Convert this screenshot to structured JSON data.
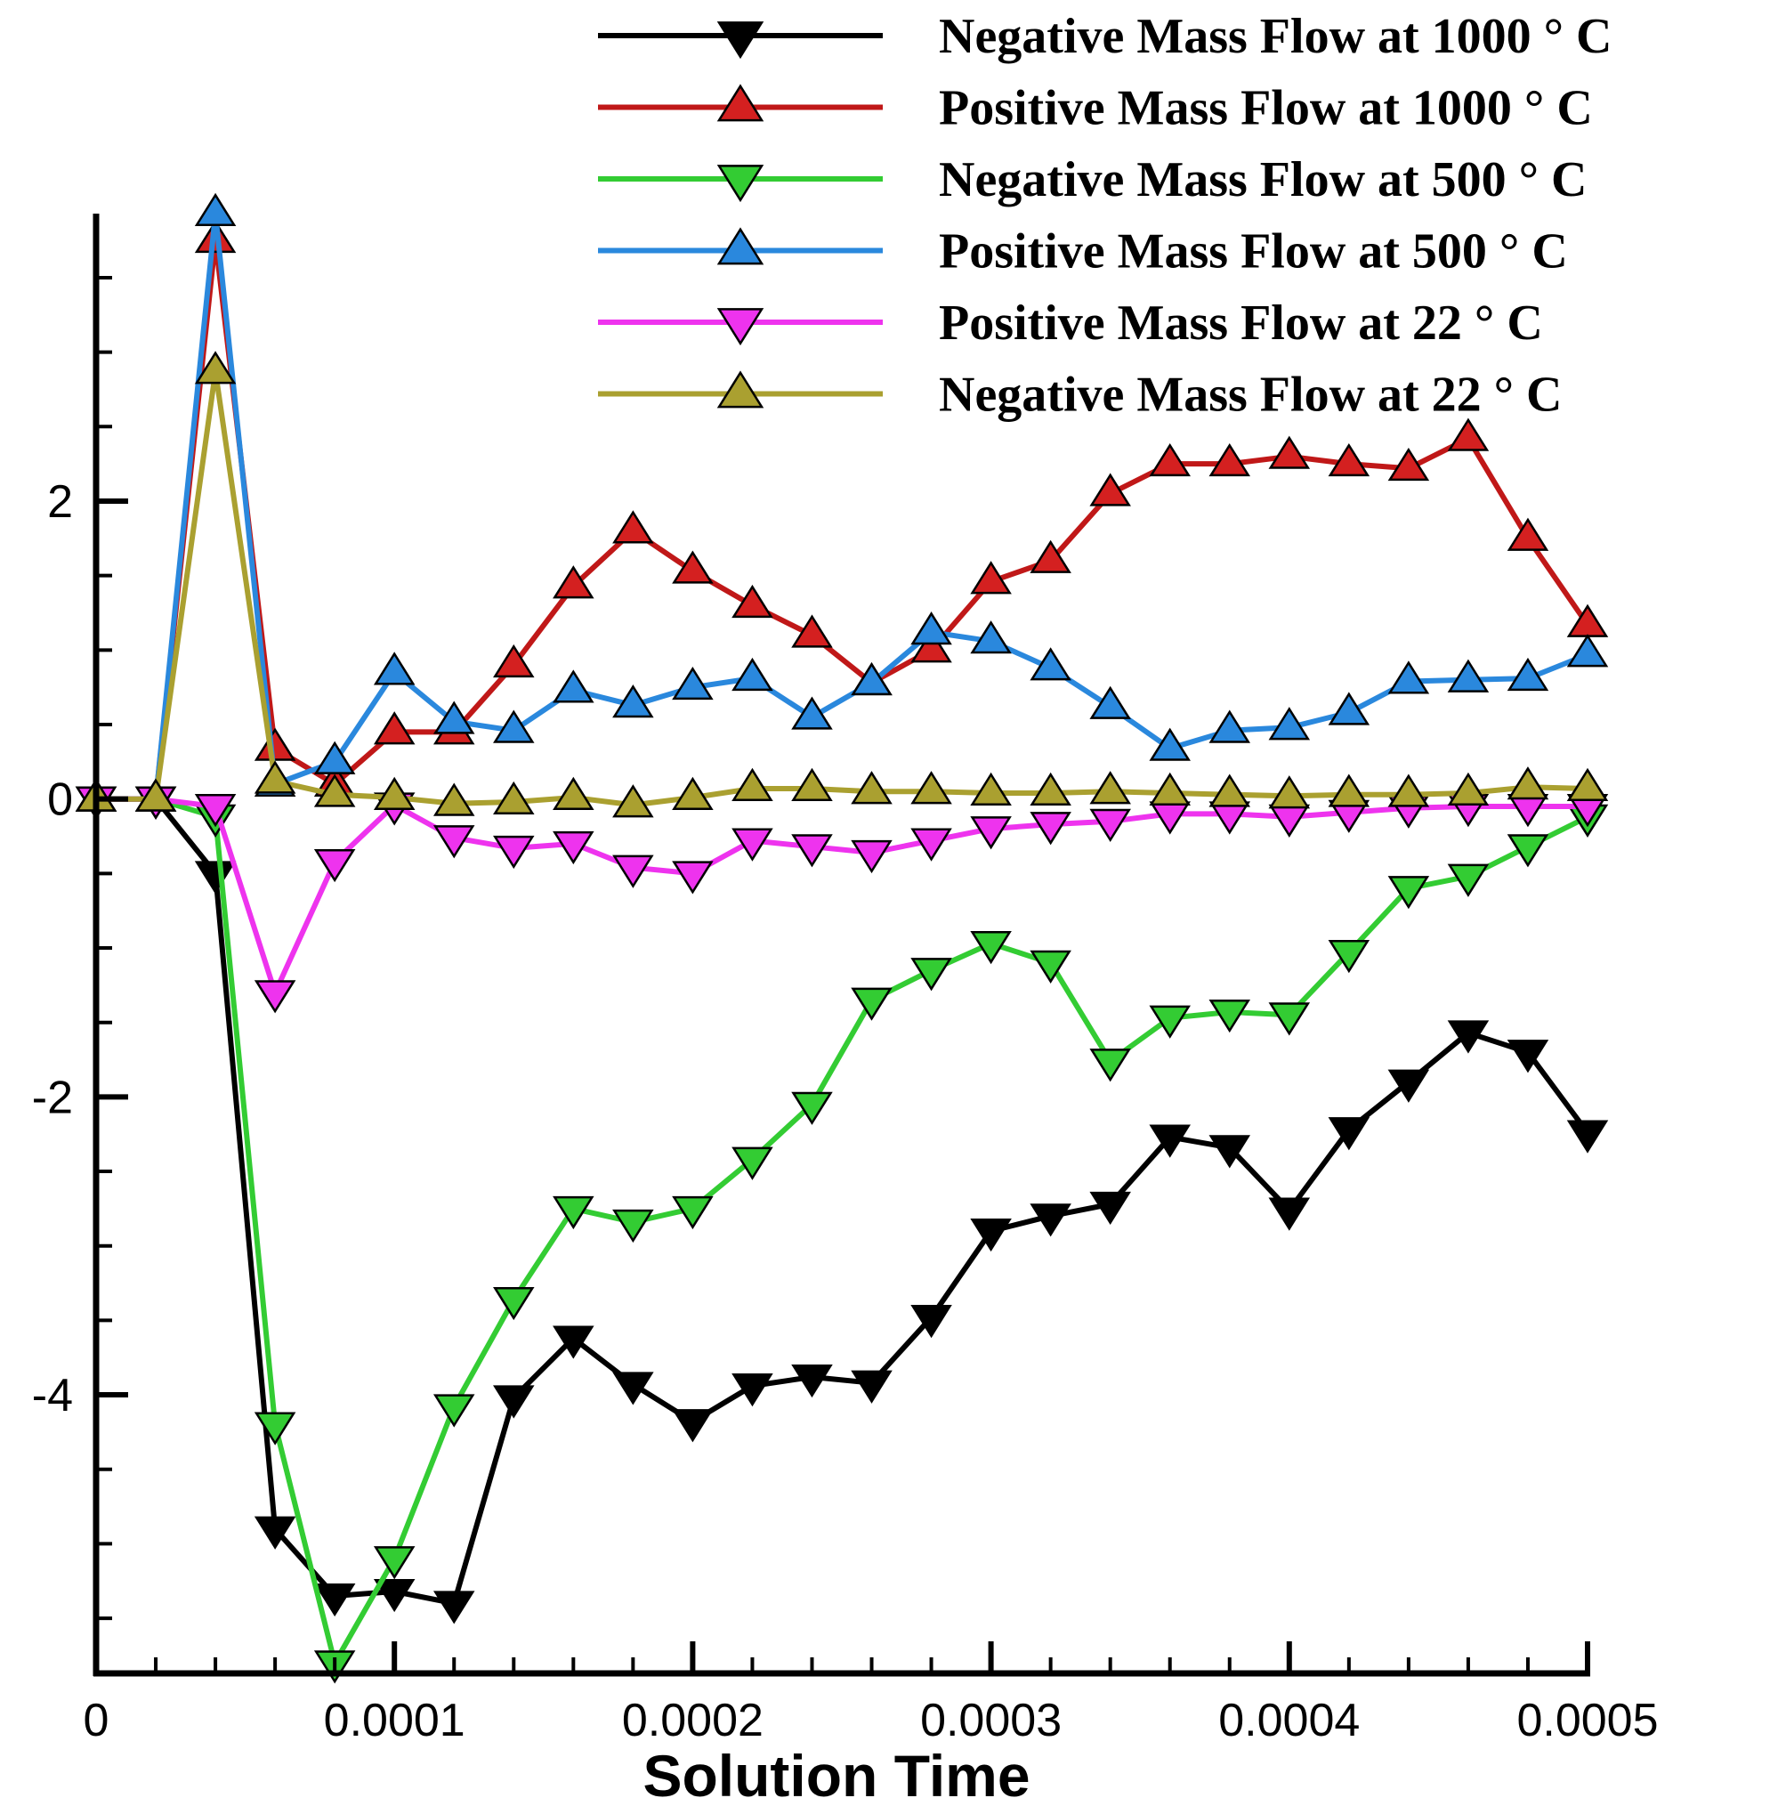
{
  "chart_data": {
    "type": "line",
    "title": "",
    "xlabel": "Solution Time",
    "ylabel": "",
    "xlim": [
      0,
      0.0005
    ],
    "ylim": [
      -5.87,
      3.93
    ],
    "x_ticks": [
      {
        "value": 0,
        "label": "0"
      },
      {
        "value": 0.0001,
        "label": "0.0001"
      },
      {
        "value": 0.0002,
        "label": "0.0002"
      },
      {
        "value": 0.0003,
        "label": "0.0003"
      },
      {
        "value": 0.0004,
        "label": "0.0004"
      },
      {
        "value": 0.0005,
        "label": "0.0005"
      }
    ],
    "y_ticks": [
      {
        "value": -4,
        "label": "-4"
      },
      {
        "value": -2,
        "label": "-2"
      },
      {
        "value": 0,
        "label": "0"
      },
      {
        "value": 2,
        "label": "2"
      }
    ],
    "x_minor_step": 2e-05,
    "y_minor_step": 0.5,
    "grid": false,
    "legend_position": "top-right",
    "x": [
      0,
      2e-05,
      4e-05,
      6e-05,
      8e-05,
      0.0001,
      0.00012,
      0.00014,
      0.00016,
      0.00018,
      0.0002,
      0.00022,
      0.00024,
      0.00026,
      0.00028,
      0.0003,
      0.00032,
      0.00034,
      0.00036,
      0.00038,
      0.0004,
      0.00042,
      0.00044,
      0.00046,
      0.00048,
      0.0005
    ],
    "series": [
      {
        "name": "Negative Mass Flow at 1000 ° C",
        "color": "#000000",
        "marker": "triangle-down",
        "marker_fill": "#000000",
        "values": [
          0,
          0,
          -0.5,
          -4.9,
          -5.35,
          -5.32,
          -5.4,
          -4.02,
          -3.62,
          -3.93,
          -4.18,
          -3.94,
          -3.88,
          -3.92,
          -3.48,
          -2.9,
          -2.8,
          -2.72,
          -2.27,
          -2.34,
          -2.76,
          -2.22,
          -1.9,
          -1.57,
          -1.7,
          -2.24
        ]
      },
      {
        "name": "Positive Mass Flow at 1000 ° C",
        "color": "#c01818",
        "marker": "triangle-up",
        "marker_fill": "#d42020",
        "values": [
          0,
          0,
          3.75,
          0.34,
          0.1,
          0.45,
          0.45,
          0.9,
          1.43,
          1.8,
          1.53,
          1.3,
          1.1,
          0.78,
          1.0,
          1.46,
          1.6,
          2.05,
          2.25,
          2.25,
          2.3,
          2.25,
          2.22,
          2.42,
          1.75,
          1.17
        ]
      },
      {
        "name": "Negative Mass Flow at 500 ° C",
        "color": "#33cc33",
        "marker": "triangle-down",
        "marker_fill": "#33cc33",
        "values": [
          0,
          0,
          -0.12,
          -4.2,
          -5.8,
          -5.1,
          -4.08,
          -3.36,
          -2.75,
          -2.84,
          -2.75,
          -2.42,
          -2.05,
          -1.35,
          -1.15,
          -0.97,
          -1.1,
          -1.76,
          -1.47,
          -1.43,
          -1.45,
          -1.03,
          -0.6,
          -0.52,
          -0.32,
          -0.12
        ]
      },
      {
        "name": "Positive Mass Flow at 500 ° C",
        "color": "#2a88dd",
        "marker": "triangle-up",
        "marker_fill": "#2a88dd",
        "values": [
          0,
          0,
          3.93,
          0.1,
          0.25,
          0.85,
          0.52,
          0.46,
          0.73,
          0.63,
          0.75,
          0.81,
          0.55,
          0.78,
          1.12,
          1.06,
          0.88,
          0.62,
          0.34,
          0.46,
          0.48,
          0.58,
          0.79,
          0.8,
          0.81,
          0.97
        ]
      },
      {
        "name": "Positive Mass Flow at 22 ° C",
        "color": "#ee33ee",
        "marker": "triangle-down",
        "marker_fill": "#ee33ee",
        "values": [
          0,
          0,
          -0.05,
          -1.3,
          -0.42,
          -0.04,
          -0.26,
          -0.33,
          -0.3,
          -0.46,
          -0.5,
          -0.28,
          -0.32,
          -0.36,
          -0.28,
          -0.2,
          -0.17,
          -0.15,
          -0.1,
          -0.1,
          -0.12,
          -0.09,
          -0.06,
          -0.05,
          -0.05,
          -0.05
        ]
      },
      {
        "name": "Negative Mass Flow at 22 ° C",
        "color": "#aaa030",
        "marker": "triangle-up",
        "marker_fill": "#aaa030",
        "values": [
          0,
          0,
          2.87,
          0.12,
          0.03,
          0.01,
          -0.03,
          -0.02,
          0.01,
          -0.04,
          0.01,
          0.07,
          0.07,
          0.05,
          0.05,
          0.04,
          0.04,
          0.05,
          0.04,
          0.03,
          0.02,
          0.03,
          0.03,
          0.04,
          0.08,
          0.07
        ]
      }
    ]
  }
}
